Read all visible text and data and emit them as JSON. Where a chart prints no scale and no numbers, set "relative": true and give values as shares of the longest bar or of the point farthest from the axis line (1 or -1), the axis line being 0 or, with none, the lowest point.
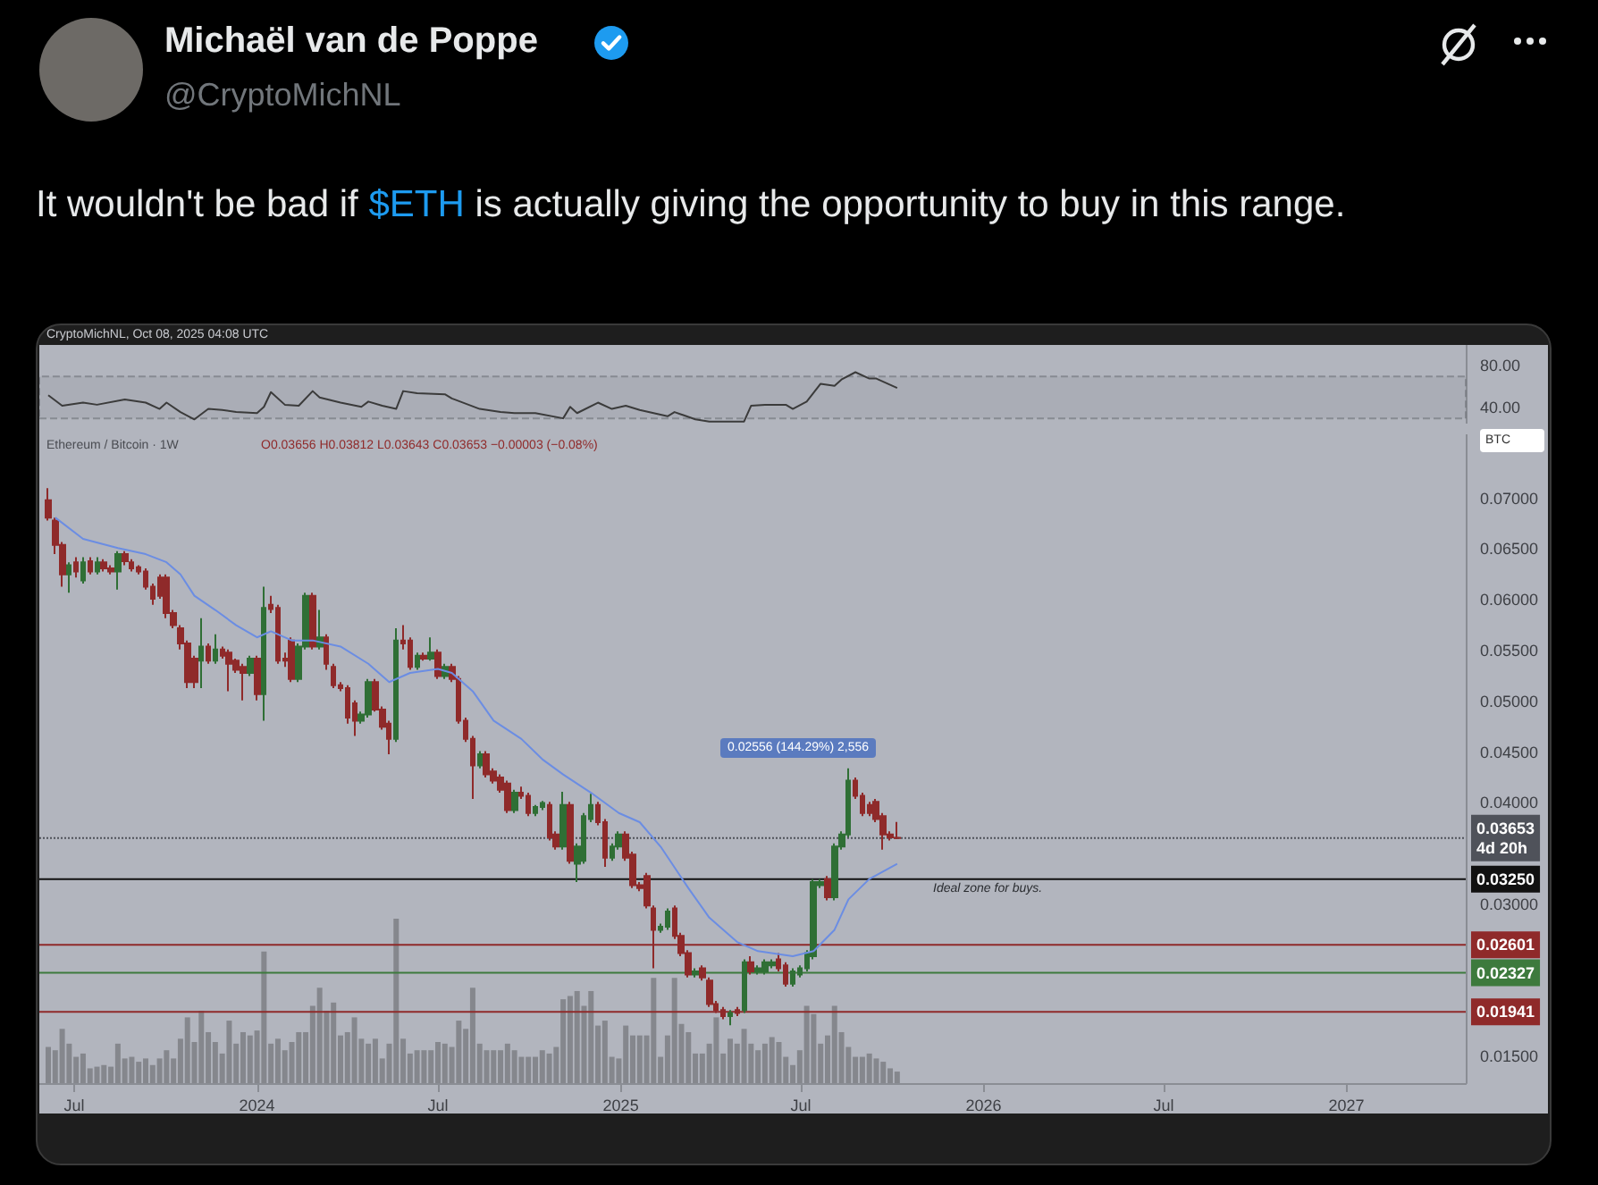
{
  "chart_data": [
    {
      "type": "line",
      "title": "It wouldn't be bad if $ETH is actually giving the opportunity to buy in this range.",
      "annotations": [
        "Michaël van de Poppe",
        "@CryptoMichNL"
      ],
      "x": [
        "2023-06-05",
        "2023-06-19",
        "2023-07-10",
        "2023-07-24",
        "2023-08-21",
        "2023-09-11",
        "2023-09-25",
        "2023-10-02",
        "2023-10-16",
        "2023-10-30",
        "2023-11-13",
        "2023-11-27",
        "2023-12-11",
        "2024-01-01",
        "2024-01-08",
        "2024-01-15",
        "2024-01-29",
        "2024-02-12",
        "2024-02-26",
        "2024-03-04",
        "2024-03-25",
        "2024-04-15",
        "2024-04-22",
        "2024-05-06",
        "2024-05-20",
        "2024-05-27",
        "2024-06-10",
        "2024-07-08",
        "2024-07-15",
        "2024-08-12",
        "2024-09-02",
        "2024-09-16",
        "2024-10-07",
        "2024-11-04",
        "2024-11-11",
        "2024-11-18",
        "2024-12-09",
        "2024-12-23",
        "2025-01-06",
        "2025-01-20",
        "2025-02-17",
        "2025-02-24",
        "2025-03-17",
        "2025-03-31",
        "2025-05-05",
        "2025-05-12",
        "2025-05-26",
        "2025-06-16",
        "2025-06-23",
        "2025-07-07",
        "2025-07-21",
        "2025-08-04",
        "2025-08-11",
        "2025-08-25",
        "2025-09-08",
        "2025-09-15",
        "2025-09-29",
        "2025-10-06"
      ],
      "values": [
        52,
        42,
        45,
        43,
        48,
        45,
        39,
        45,
        36,
        29,
        39,
        38,
        36,
        35,
        41,
        55,
        43,
        42,
        56,
        50,
        45,
        41,
        46,
        42,
        39,
        56,
        54,
        53,
        49,
        39,
        36,
        35,
        35,
        30,
        41,
        35,
        45,
        39,
        42,
        38,
        32,
        36,
        29,
        27,
        27,
        42,
        43,
        43,
        39,
        46,
        63,
        61,
        67,
        74,
        68,
        68,
        62,
        59
      ],
      "color": "#3b3b3b",
      "xlim": [
        "2023-05-27",
        "2027-05-01"
      ],
      "ylim": [
        25,
        100
      ],
      "yticks": [
        {
          "value": 40,
          "label": "40.00"
        },
        {
          "value": 80,
          "label": "80.00"
        }
      ],
      "bands": [
        {
          "axis": "y",
          "from": 30,
          "to": 70,
          "color": "#a5a8b0"
        }
      ],
      "tick_labels": "y"
    },
    {
      "type": "candlestick",
      "annotations": [
        "CryptoMichNL, Oct 08, 2025 04:08 UTC",
        "Ethereum / Bitcoin · 1W",
        "O0.03656 H0.03812 L0.03643 C0.03653 −0.00003 (−0.08%)",
        "BTC",
        "0.02556 (144.29%) 2,556",
        "Ideal zone for buys."
      ],
      "x": [
        "2023-06-05",
        "2023-06-12",
        "2023-06-19",
        "2023-06-26",
        "2023-07-03",
        "2023-07-10",
        "2023-07-17",
        "2023-07-24",
        "2023-07-31",
        "2023-08-07",
        "2023-08-14",
        "2023-08-21",
        "2023-08-28",
        "2023-09-04",
        "2023-09-11",
        "2023-09-18",
        "2023-09-25",
        "2023-10-02",
        "2023-10-09",
        "2023-10-16",
        "2023-10-23",
        "2023-10-30",
        "2023-11-06",
        "2023-11-13",
        "2023-11-20",
        "2023-11-27",
        "2023-12-04",
        "2023-12-11",
        "2023-12-18",
        "2023-12-25",
        "2024-01-01",
        "2024-01-08",
        "2024-01-15",
        "2024-01-22",
        "2024-01-29",
        "2024-02-05",
        "2024-02-12",
        "2024-02-19",
        "2024-02-26",
        "2024-03-04",
        "2024-03-11",
        "2024-03-18",
        "2024-03-25",
        "2024-04-01",
        "2024-04-08",
        "2024-04-15",
        "2024-04-22",
        "2024-04-29",
        "2024-05-06",
        "2024-05-13",
        "2024-05-20",
        "2024-05-27",
        "2024-06-03",
        "2024-06-10",
        "2024-06-17",
        "2024-06-24",
        "2024-07-01",
        "2024-07-08",
        "2024-07-15",
        "2024-07-22",
        "2024-07-29",
        "2024-08-05",
        "2024-08-12",
        "2024-08-19",
        "2024-08-26",
        "2024-09-02",
        "2024-09-09",
        "2024-09-16",
        "2024-09-23",
        "2024-09-30",
        "2024-10-07",
        "2024-10-14",
        "2024-10-21",
        "2024-10-28",
        "2024-11-04",
        "2024-11-11",
        "2024-11-18",
        "2024-11-25",
        "2024-12-02",
        "2024-12-09",
        "2024-12-16",
        "2024-12-23",
        "2024-12-30",
        "2025-01-06",
        "2025-01-13",
        "2025-01-20",
        "2025-01-27",
        "2025-02-03",
        "2025-02-10",
        "2025-02-17",
        "2025-02-24",
        "2025-03-03",
        "2025-03-10",
        "2025-03-17",
        "2025-03-24",
        "2025-03-31",
        "2025-04-07",
        "2025-04-14",
        "2025-04-21",
        "2025-04-28",
        "2025-05-05",
        "2025-05-12",
        "2025-05-19",
        "2025-05-26",
        "2025-06-02",
        "2025-06-09",
        "2025-06-16",
        "2025-06-23",
        "2025-06-30",
        "2025-07-07",
        "2025-07-14",
        "2025-07-21",
        "2025-07-28",
        "2025-08-04",
        "2025-08-11",
        "2025-08-18",
        "2025-08-25",
        "2025-09-01",
        "2025-09-08",
        "2025-09-15",
        "2025-09-22",
        "2025-09-29",
        "2025-10-06"
      ],
      "ohlc": [
        [
          0.0698,
          0.071,
          0.0678,
          0.0681
        ],
        [
          0.0678,
          0.0681,
          0.0645,
          0.0654
        ],
        [
          0.0654,
          0.0657,
          0.0613,
          0.0625
        ],
        [
          0.0625,
          0.0637,
          0.0607,
          0.0634
        ],
        [
          0.0637,
          0.0642,
          0.0622,
          0.0628
        ],
        [
          0.0619,
          0.0642,
          0.0616,
          0.0637
        ],
        [
          0.0638,
          0.0642,
          0.0625,
          0.0628
        ],
        [
          0.0628,
          0.0642,
          0.0625,
          0.0637
        ],
        [
          0.0637,
          0.064,
          0.0628,
          0.0631
        ],
        [
          0.0631,
          0.0634,
          0.0625,
          0.0628
        ],
        [
          0.0628,
          0.0648,
          0.061,
          0.0645
        ],
        [
          0.0645,
          0.0648,
          0.0634,
          0.0638
        ],
        [
          0.0637,
          0.064,
          0.0628,
          0.0631
        ],
        [
          0.0632,
          0.0634,
          0.0625,
          0.0628
        ],
        [
          0.0628,
          0.0631,
          0.061,
          0.0613
        ],
        [
          0.0613,
          0.0616,
          0.0595,
          0.0601
        ],
        [
          0.0622,
          0.0625,
          0.0601,
          0.0604
        ],
        [
          0.0622,
          0.0625,
          0.0582,
          0.0587
        ],
        [
          0.0587,
          0.059,
          0.0572,
          0.0575
        ],
        [
          0.0572,
          0.0575,
          0.0551,
          0.0557
        ],
        [
          0.0557,
          0.056,
          0.0513,
          0.0519
        ],
        [
          0.0542,
          0.0545,
          0.0513,
          0.0519
        ],
        [
          0.054,
          0.0582,
          0.0513,
          0.0554
        ],
        [
          0.0554,
          0.0557,
          0.0537,
          0.054
        ],
        [
          0.054,
          0.0566,
          0.0537,
          0.0551
        ],
        [
          0.0551,
          0.0554,
          0.0542,
          0.0545
        ],
        [
          0.0548,
          0.0551,
          0.051,
          0.0537
        ],
        [
          0.054,
          0.0542,
          0.0528,
          0.0531
        ],
        [
          0.0534,
          0.0537,
          0.0501,
          0.0528
        ],
        [
          0.0528,
          0.0545,
          0.0525,
          0.0542
        ],
        [
          0.0542,
          0.0545,
          0.0501,
          0.0507
        ],
        [
          0.0507,
          0.0613,
          0.0481,
          0.0592
        ],
        [
          0.0595,
          0.0604,
          0.0587,
          0.0591
        ],
        [
          0.0592,
          0.0595,
          0.0537,
          0.054
        ],
        [
          0.0542,
          0.0548,
          0.0534,
          0.054
        ],
        [
          0.056,
          0.0563,
          0.0519,
          0.0522
        ],
        [
          0.0522,
          0.0557,
          0.0519,
          0.0554
        ],
        [
          0.0554,
          0.0607,
          0.0551,
          0.0604
        ],
        [
          0.0604,
          0.0607,
          0.0551,
          0.0554
        ],
        [
          0.0554,
          0.059,
          0.0551,
          0.0563
        ],
        [
          0.0563,
          0.0566,
          0.0531,
          0.0537
        ],
        [
          0.0534,
          0.0537,
          0.0513,
          0.0516
        ],
        [
          0.0516,
          0.0519,
          0.051,
          0.0513
        ],
        [
          0.0513,
          0.0516,
          0.0478,
          0.0484
        ],
        [
          0.0498,
          0.0501,
          0.0466,
          0.0481
        ],
        [
          0.0481,
          0.049,
          0.0478,
          0.0487
        ],
        [
          0.0487,
          0.0522,
          0.0484,
          0.0519
        ],
        [
          0.0519,
          0.0522,
          0.049,
          0.0492
        ],
        [
          0.0492,
          0.0495,
          0.0472,
          0.0475
        ],
        [
          0.0478,
          0.0481,
          0.0448,
          0.0463
        ],
        [
          0.0463,
          0.0572,
          0.046,
          0.056
        ],
        [
          0.056,
          0.0575,
          0.0551,
          0.0557
        ],
        [
          0.056,
          0.0563,
          0.0531,
          0.0534
        ],
        [
          0.0534,
          0.0548,
          0.0531,
          0.0545
        ],
        [
          0.0545,
          0.0548,
          0.054,
          0.0542
        ],
        [
          0.0542,
          0.0563,
          0.054,
          0.0548
        ],
        [
          0.0548,
          0.0551,
          0.0522,
          0.0525
        ],
        [
          0.0525,
          0.0537,
          0.0522,
          0.0534
        ],
        [
          0.0534,
          0.0537,
          0.0519,
          0.0522
        ],
        [
          0.0522,
          0.0525,
          0.0478,
          0.0481
        ],
        [
          0.0481,
          0.0484,
          0.046,
          0.0463
        ],
        [
          0.0463,
          0.0466,
          0.0404,
          0.0437
        ],
        [
          0.0437,
          0.0451,
          0.0434,
          0.0448
        ],
        [
          0.0448,
          0.0451,
          0.0425,
          0.0428
        ],
        [
          0.0431,
          0.0434,
          0.0419,
          0.0422
        ],
        [
          0.0425,
          0.0428,
          0.041,
          0.0413
        ],
        [
          0.0419,
          0.0422,
          0.039,
          0.0393
        ],
        [
          0.0393,
          0.0413,
          0.039,
          0.041
        ],
        [
          0.041,
          0.0416,
          0.0404,
          0.0407
        ],
        [
          0.0407,
          0.041,
          0.0387,
          0.039
        ],
        [
          0.039,
          0.0398,
          0.0387,
          0.0396
        ],
        [
          0.0396,
          0.0402,
          0.0393,
          0.04
        ],
        [
          0.0398,
          0.0401,
          0.0363,
          0.0366
        ],
        [
          0.0369,
          0.0372,
          0.0354,
          0.0357
        ],
        [
          0.0357,
          0.0411,
          0.0354,
          0.0398
        ],
        [
          0.0398,
          0.0401,
          0.034,
          0.0343
        ],
        [
          0.034,
          0.036,
          0.0322,
          0.0357
        ],
        [
          0.0343,
          0.039,
          0.034,
          0.0387
        ],
        [
          0.0384,
          0.0409,
          0.0381,
          0.0398
        ],
        [
          0.0398,
          0.0401,
          0.0378,
          0.0381
        ],
        [
          0.0381,
          0.0384,
          0.0337,
          0.0346
        ],
        [
          0.0346,
          0.036,
          0.0343,
          0.0357
        ],
        [
          0.0357,
          0.0372,
          0.0354,
          0.0369
        ],
        [
          0.0369,
          0.0372,
          0.0343,
          0.0346
        ],
        [
          0.0349,
          0.0352,
          0.0316,
          0.0319
        ],
        [
          0.0319,
          0.0322,
          0.0313,
          0.0316
        ],
        [
          0.0328,
          0.0331,
          0.0296,
          0.0299
        ],
        [
          0.0296,
          0.0299,
          0.0237,
          0.0275
        ],
        [
          0.0275,
          0.0281,
          0.0272,
          0.0278
        ],
        [
          0.0278,
          0.0296,
          0.0275,
          0.0293
        ],
        [
          0.0296,
          0.0299,
          0.0266,
          0.0269
        ],
        [
          0.0269,
          0.0272,
          0.0249,
          0.0252
        ],
        [
          0.0252,
          0.0255,
          0.0228,
          0.0231
        ],
        [
          0.0231,
          0.0237,
          0.0228,
          0.0234
        ],
        [
          0.0237,
          0.024,
          0.0225,
          0.0228
        ],
        [
          0.0225,
          0.0228,
          0.0199,
          0.0202
        ],
        [
          0.0202,
          0.0205,
          0.0193,
          0.0196
        ],
        [
          0.0196,
          0.0199,
          0.0187,
          0.019
        ],
        [
          0.019,
          0.0196,
          0.0181,
          0.0193
        ],
        [
          0.0196,
          0.0199,
          0.019,
          0.0193
        ],
        [
          0.0196,
          0.0246,
          0.0193,
          0.0243
        ],
        [
          0.0243,
          0.0249,
          0.0231,
          0.0234
        ],
        [
          0.0234,
          0.024,
          0.0231,
          0.0237
        ],
        [
          0.0234,
          0.0246,
          0.0231,
          0.0243
        ],
        [
          0.024,
          0.0246,
          0.0237,
          0.0243
        ],
        [
          0.0246,
          0.0252,
          0.0234,
          0.0237
        ],
        [
          0.024,
          0.0243,
          0.0219,
          0.0222
        ],
        [
          0.0222,
          0.0237,
          0.0219,
          0.0234
        ],
        [
          0.0231,
          0.024,
          0.0228,
          0.0237
        ],
        [
          0.0237,
          0.0255,
          0.0234,
          0.0252
        ],
        [
          0.0249,
          0.0325,
          0.0246,
          0.0322
        ],
        [
          0.0319,
          0.0325,
          0.0316,
          0.0322
        ],
        [
          0.0325,
          0.0328,
          0.0304,
          0.0307
        ],
        [
          0.0307,
          0.036,
          0.0304,
          0.0357
        ],
        [
          0.0357,
          0.0372,
          0.0354,
          0.0369
        ],
        [
          0.0369,
          0.0434,
          0.0366,
          0.0422
        ],
        [
          0.0422,
          0.0425,
          0.0404,
          0.0407
        ],
        [
          0.0407,
          0.041,
          0.0387,
          0.039
        ],
        [
          0.0398,
          0.0401,
          0.0387,
          0.039
        ],
        [
          0.0401,
          0.0404,
          0.0381,
          0.0384
        ],
        [
          0.0387,
          0.039,
          0.0354,
          0.0369
        ],
        [
          0.0369,
          0.0372,
          0.0363,
          0.0366
        ],
        [
          0.03656,
          0.03812,
          0.03643,
          0.03653
        ]
      ],
      "colors": [
        "#8f2a2a",
        "#8f2a2a",
        "#8f2a2a",
        "#2f6f35",
        "#8f2a2a",
        "#2f6f35",
        "#8f2a2a",
        "#2f6f35",
        "#8f2a2a",
        "#8f2a2a",
        "#2f6f35",
        "#8f2a2a",
        "#8f2a2a",
        "#8f2a2a",
        "#8f2a2a",
        "#8f2a2a",
        "#8f2a2a",
        "#8f2a2a",
        "#8f2a2a",
        "#8f2a2a",
        "#8f2a2a",
        "#8f2a2a",
        "#2f6f35",
        "#8f2a2a",
        "#2f6f35",
        "#8f2a2a",
        "#8f2a2a",
        "#8f2a2a",
        "#8f2a2a",
        "#2f6f35",
        "#8f2a2a",
        "#2f6f35",
        "#8f2a2a",
        "#8f2a2a",
        "#8f2a2a",
        "#8f2a2a",
        "#2f6f35",
        "#2f6f35",
        "#8f2a2a",
        "#2f6f35",
        "#8f2a2a",
        "#8f2a2a",
        "#8f2a2a",
        "#8f2a2a",
        "#8f2a2a",
        "#2f6f35",
        "#2f6f35",
        "#8f2a2a",
        "#8f2a2a",
        "#8f2a2a",
        "#2f6f35",
        "#8f2a2a",
        "#8f2a2a",
        "#2f6f35",
        "#8f2a2a",
        "#2f6f35",
        "#8f2a2a",
        "#2f6f35",
        "#8f2a2a",
        "#8f2a2a",
        "#8f2a2a",
        "#8f2a2a",
        "#2f6f35",
        "#8f2a2a",
        "#8f2a2a",
        "#8f2a2a",
        "#8f2a2a",
        "#2f6f35",
        "#8f2a2a",
        "#8f2a2a",
        "#2f6f35",
        "#2f6f35",
        "#8f2a2a",
        "#8f2a2a",
        "#2f6f35",
        "#8f2a2a",
        "#2f6f35",
        "#2f6f35",
        "#2f6f35",
        "#8f2a2a",
        "#8f2a2a",
        "#2f6f35",
        "#2f6f35",
        "#8f2a2a",
        "#8f2a2a",
        "#8f2a2a",
        "#8f2a2a",
        "#8f2a2a",
        "#2f6f35",
        "#2f6f35",
        "#8f2a2a",
        "#8f2a2a",
        "#8f2a2a",
        "#2f6f35",
        "#8f2a2a",
        "#8f2a2a",
        "#8f2a2a",
        "#8f2a2a",
        "#2f6f35",
        "#8f2a2a",
        "#2f6f35",
        "#8f2a2a",
        "#2f6f35",
        "#2f6f35",
        "#2f6f35",
        "#8f2a2a",
        "#8f2a2a",
        "#2f6f35",
        "#2f6f35",
        "#2f6f35",
        "#2f6f35",
        "#2f6f35",
        "#8f2a2a",
        "#2f6f35",
        "#2f6f35",
        "#2f6f35",
        "#8f2a2a",
        "#8f2a2a",
        "#8f2a2a",
        "#8f2a2a",
        "#8f2a2a",
        "#8f2a2a",
        "#8f2a2a"
      ],
      "series": [
        {
          "type": "line",
          "color": "#6b8de3",
          "x": [
            "2023-06-12",
            "2023-07-10",
            "2023-08-14",
            "2023-09-11",
            "2023-10-02",
            "2023-10-16",
            "2023-10-30",
            "2023-11-20",
            "2023-12-11",
            "2024-01-01",
            "2024-01-15",
            "2024-02-05",
            "2024-02-26",
            "2024-03-25",
            "2024-04-22",
            "2024-05-13",
            "2024-06-03",
            "2024-07-01",
            "2024-07-15",
            "2024-08-05",
            "2024-08-26",
            "2024-09-23",
            "2024-10-14",
            "2024-11-04",
            "2024-12-02",
            "2024-12-30",
            "2025-01-20",
            "2025-02-10",
            "2025-03-10",
            "2025-03-31",
            "2025-04-28",
            "2025-05-19",
            "2025-06-23",
            "2025-07-14",
            "2025-08-04",
            "2025-08-18",
            "2025-09-08",
            "2025-10-06"
          ],
          "values": [
            0.0681,
            0.066,
            0.0651,
            0.0645,
            0.0637,
            0.0625,
            0.0604,
            0.059,
            0.0575,
            0.0563,
            0.0569,
            0.056,
            0.056,
            0.0554,
            0.0537,
            0.0519,
            0.0528,
            0.0532,
            0.0528,
            0.051,
            0.0481,
            0.0463,
            0.0443,
            0.0428,
            0.041,
            0.039,
            0.0381,
            0.0357,
            0.0316,
            0.0287,
            0.0263,
            0.0254,
            0.0249,
            0.0254,
            0.0275,
            0.0305,
            0.0325,
            0.034
          ]
        }
      ],
      "xlim": [
        "2023-05-27",
        "2027-05-01"
      ],
      "tick_labels": "y",
      "ylim": [
        0.0124,
        0.0763
      ],
      "yticks": [
        {
          "value": 0.015,
          "label": "0.01500"
        },
        {
          "value": 0.03,
          "label": "0.03000"
        },
        {
          "value": 0.04,
          "label": "0.04000"
        },
        {
          "value": 0.045,
          "label": "0.04500"
        },
        {
          "value": 0.05,
          "label": "0.05000"
        },
        {
          "value": 0.055,
          "label": "0.05500"
        },
        {
          "value": 0.06,
          "label": "0.06000"
        },
        {
          "value": 0.065,
          "label": "0.06500"
        },
        {
          "value": 0.07,
          "label": "0.07000"
        }
      ],
      "ref_lines": [
        {
          "axis": "y",
          "value": 0.03653,
          "label": "0.03653\n4d 20h",
          "color": "#4f525a",
          "line_style": "dotted"
        },
        {
          "axis": "y",
          "value": 0.0325,
          "label": "0.03250",
          "color": "#111111",
          "line_style": "solid"
        },
        {
          "axis": "y",
          "value": 0.02601,
          "label": "0.02601",
          "color": "#8f2a2a",
          "line_style": "solid"
        },
        {
          "axis": "y",
          "value": 0.02327,
          "label": "0.02327",
          "color": "#3d7a3d",
          "line_style": "solid"
        },
        {
          "axis": "y",
          "value": 0.01941,
          "label": "0.01941",
          "color": "#8f2a2a",
          "line_style": "solid"
        }
      ]
    },
    {
      "type": "bar",
      "relative": true,
      "tick_labels": "x",
      "color": "#85878d",
      "xticks": [
        {
          "value": "2023-07-01",
          "label": "Jul"
        },
        {
          "value": "2024-01-01",
          "label": "2024"
        },
        {
          "value": "2024-07-01",
          "label": "Jul"
        },
        {
          "value": "2025-01-01",
          "label": "2025"
        },
        {
          "value": "2025-07-01",
          "label": "Jul"
        },
        {
          "value": "2026-01-01",
          "label": "2026"
        },
        {
          "value": "2026-07-01",
          "label": "Jul"
        },
        {
          "value": "2027-01-01",
          "label": "2027"
        }
      ],
      "x": [
        "2023-06-05",
        "2023-06-12",
        "2023-06-19",
        "2023-06-26",
        "2023-07-03",
        "2023-07-10",
        "2023-07-17",
        "2023-07-24",
        "2023-07-31",
        "2023-08-07",
        "2023-08-14",
        "2023-08-21",
        "2023-08-28",
        "2023-09-04",
        "2023-09-11",
        "2023-09-18",
        "2023-09-25",
        "2023-10-02",
        "2023-10-09",
        "2023-10-16",
        "2023-10-23",
        "2023-10-30",
        "2023-11-06",
        "2023-11-13",
        "2023-11-20",
        "2023-11-27",
        "2023-12-04",
        "2023-12-11",
        "2023-12-18",
        "2023-12-25",
        "2024-01-01",
        "2024-01-08",
        "2024-01-15",
        "2024-01-22",
        "2024-01-29",
        "2024-02-05",
        "2024-02-12",
        "2024-02-19",
        "2024-02-26",
        "2024-03-04",
        "2024-03-11",
        "2024-03-18",
        "2024-03-25",
        "2024-04-01",
        "2024-04-08",
        "2024-04-15",
        "2024-04-22",
        "2024-04-29",
        "2024-05-06",
        "2024-05-13",
        "2024-05-20",
        "2024-05-27",
        "2024-06-03",
        "2024-06-10",
        "2024-06-17",
        "2024-06-24",
        "2024-07-01",
        "2024-07-08",
        "2024-07-15",
        "2024-07-22",
        "2024-07-29",
        "2024-08-05",
        "2024-08-12",
        "2024-08-19",
        "2024-08-26",
        "2024-09-02",
        "2024-09-09",
        "2024-09-16",
        "2024-09-23",
        "2024-09-30",
        "2024-10-07",
        "2024-10-14",
        "2024-10-21",
        "2024-10-28",
        "2024-11-04",
        "2024-11-11",
        "2024-11-18",
        "2024-11-25",
        "2024-12-02",
        "2024-12-09",
        "2024-12-16",
        "2024-12-23",
        "2024-12-30",
        "2025-01-06",
        "2025-01-13",
        "2025-01-20",
        "2025-01-27",
        "2025-02-03",
        "2025-02-10",
        "2025-02-17",
        "2025-02-24",
        "2025-03-03",
        "2025-03-10",
        "2025-03-17",
        "2025-03-24",
        "2025-03-31",
        "2025-04-07",
        "2025-04-14",
        "2025-04-21",
        "2025-04-28",
        "2025-05-05",
        "2025-05-12",
        "2025-05-19",
        "2025-05-26",
        "2025-06-02",
        "2025-06-09",
        "2025-06-16",
        "2025-06-23",
        "2025-06-30",
        "2025-07-07",
        "2025-07-14",
        "2025-07-21",
        "2025-07-28",
        "2025-08-04",
        "2025-08-11",
        "2025-08-18",
        "2025-08-25",
        "2025-09-01",
        "2025-09-08",
        "2025-09-15",
        "2025-09-22",
        "2025-09-29",
        "2025-10-06"
      ],
      "values": [
        0.22,
        0.2,
        0.33,
        0.24,
        0.16,
        0.18,
        0.09,
        0.1,
        0.11,
        0.1,
        0.24,
        0.15,
        0.16,
        0.13,
        0.15,
        0.11,
        0.15,
        0.2,
        0.15,
        0.27,
        0.4,
        0.25,
        0.44,
        0.31,
        0.25,
        0.18,
        0.38,
        0.24,
        0.31,
        0.29,
        0.32,
        0.8,
        0.24,
        0.27,
        0.2,
        0.25,
        0.31,
        0.31,
        0.47,
        0.58,
        0.44,
        0.49,
        0.29,
        0.31,
        0.4,
        0.27,
        0.24,
        0.27,
        0.15,
        0.24,
        1,
        0.27,
        0.18,
        0.2,
        0.2,
        0.2,
        0.25,
        0.24,
        0.22,
        0.38,
        0.33,
        0.58,
        0.24,
        0.2,
        0.2,
        0.2,
        0.24,
        0.2,
        0.16,
        0.16,
        0.16,
        0.2,
        0.18,
        0.22,
        0.51,
        0.53,
        0.56,
        0.47,
        0.56,
        0.35,
        0.38,
        0.16,
        0.15,
        0.35,
        0.29,
        0.29,
        0.29,
        0.64,
        0.16,
        0.29,
        0.64,
        0.36,
        0.31,
        0.18,
        0.18,
        0.24,
        0.4,
        0.18,
        0.27,
        0.24,
        0.33,
        0.24,
        0.2,
        0.24,
        0.28,
        0.25,
        0.16,
        0.11,
        0.2,
        0.47,
        0.42,
        0.24,
        0.29,
        0.47,
        0.31,
        0.22,
        0.16,
        0.16,
        0.18,
        0.15,
        0.13,
        0.09,
        0.07
      ],
      "xlim": [
        "2023-05-27",
        "2027-05-01"
      ]
    }
  ]
}
